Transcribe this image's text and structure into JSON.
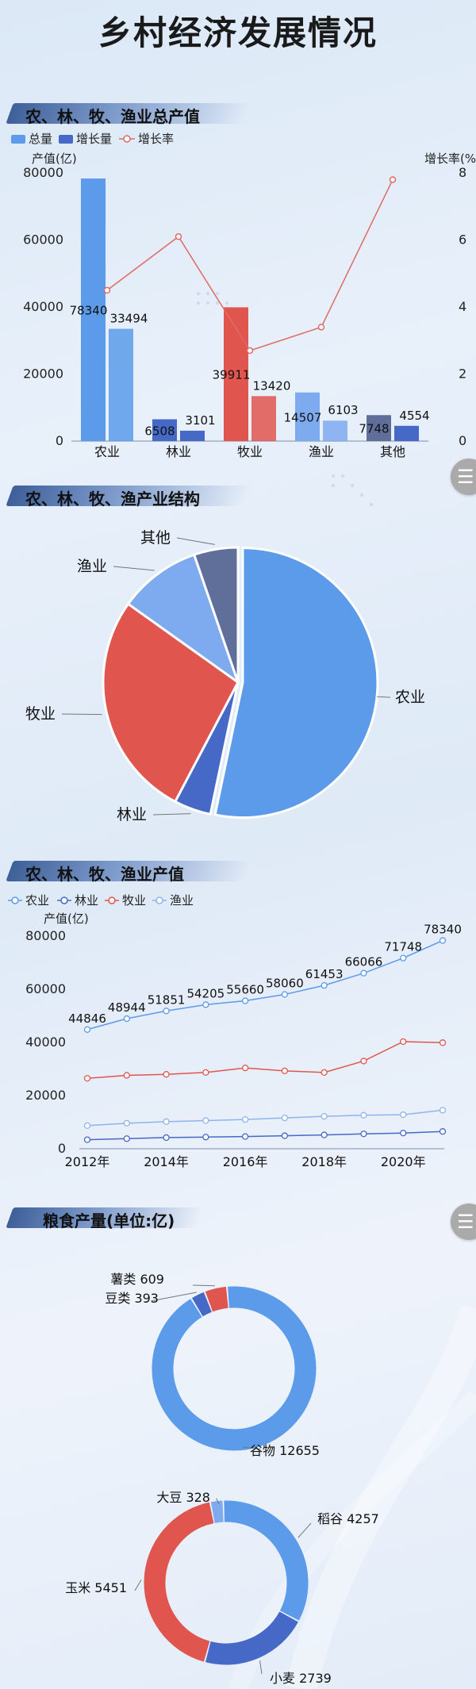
{
  "page_title": "乡村经济发展情况",
  "sections": {
    "s1": "农、林、牧、渔业总产值",
    "s2": "农、林、牧、渔产业结构",
    "s3": "农、林、牧、渔业产值",
    "s4": "粮食产量(单位:亿)"
  },
  "colors": {
    "blue": "#5b9bea",
    "dark_blue": "#4669c8",
    "red": "#e0554e",
    "light_blue": "#7eaaf0",
    "slate": "#5f6f9a",
    "growth_line": "#e06a66"
  },
  "chart_data": [
    {
      "type": "bar",
      "legend": [
        "总量",
        "增长量",
        "增长率"
      ],
      "categories": [
        "农业",
        "林业",
        "牧业",
        "渔业",
        "其他"
      ],
      "series": [
        {
          "name": "总量",
          "values": [
            78340,
            6508,
            39911,
            14507,
            7748
          ]
        },
        {
          "name": "增长量",
          "values": [
            33494,
            3101,
            13420,
            6103,
            4554
          ]
        },
        {
          "name": "增长率",
          "values": [
            4.5,
            6.1,
            2.7,
            3.4,
            7.8
          ]
        }
      ],
      "ylabel": "产值(亿)",
      "y2label": "增长率(%)",
      "ylim": [
        0,
        80000
      ],
      "y2lim": [
        0,
        8
      ],
      "yticks": [
        0,
        20000,
        40000,
        60000,
        80000
      ],
      "y2ticks": [
        0,
        2,
        4,
        6,
        8
      ],
      "bar_colors": [
        [
          "#5b9bea",
          "#5b9bea"
        ],
        [
          "#4669c8",
          "#4669c8"
        ],
        [
          "#e0554e",
          "#e0554e"
        ],
        [
          "#7eaaf0",
          "#7eaaf0"
        ],
        [
          "#5f6f9a",
          "#4669c8"
        ]
      ]
    },
    {
      "type": "pie",
      "labels": [
        "农业",
        "林业",
        "牧业",
        "渔业",
        "其他"
      ],
      "values": [
        78340,
        6508,
        39911,
        14507,
        7748
      ],
      "colors": [
        "#5b9bea",
        "#4669c8",
        "#e0554e",
        "#7eaaf0",
        "#5f6f9a"
      ]
    },
    {
      "type": "line",
      "legend": [
        "农业",
        "林业",
        "牧业",
        "渔业"
      ],
      "x": [
        2012,
        2013,
        2014,
        2015,
        2016,
        2017,
        2018,
        2019,
        2020,
        2021
      ],
      "xticks": [
        "2012年",
        "2014年",
        "2016年",
        "2018年",
        "2020年"
      ],
      "series": [
        {
          "name": "农业",
          "values": [
            44846,
            48944,
            51851,
            54205,
            55660,
            58060,
            61453,
            66066,
            71748,
            78340
          ],
          "color": "#5b9bea"
        },
        {
          "name": "林业",
          "values": [
            3400,
            3800,
            4200,
            4400,
            4600,
            4900,
            5200,
            5600,
            5900,
            6508
          ],
          "color": "#4669c8"
        },
        {
          "name": "牧业",
          "values": [
            26500,
            27600,
            28000,
            28700,
            30400,
            29300,
            28700,
            33000,
            40300,
            39911
          ],
          "color": "#e0554e"
        },
        {
          "name": "渔业",
          "values": [
            8700,
            9600,
            10200,
            10600,
            11000,
            11600,
            12200,
            12600,
            12800,
            14507
          ],
          "color": "#8fb4ec"
        }
      ],
      "ylabel": "产值(亿)",
      "ylim": [
        0,
        80000
      ],
      "yticks": [
        0,
        20000,
        40000,
        60000,
        80000
      ],
      "labeled_series": "农业"
    },
    {
      "type": "pie",
      "labels": [
        "谷物",
        "豆类",
        "薯类"
      ],
      "values": [
        12655,
        393,
        609
      ],
      "colors": [
        "#5b9bea",
        "#4669c8",
        "#e0554e"
      ],
      "label_text": [
        "谷物 12655",
        "豆类 393",
        "薯类 609"
      ]
    },
    {
      "type": "pie",
      "labels": [
        "稻谷",
        "小麦",
        "玉米",
        "大豆"
      ],
      "values": [
        4257,
        2739,
        5451,
        328
      ],
      "colors": [
        "#5b9bea",
        "#4669c8",
        "#e0554e",
        "#7eaaf0"
      ],
      "label_text": [
        "稻谷 4257",
        "小麦 2739",
        "玉米 5451",
        "大豆 328"
      ]
    }
  ]
}
